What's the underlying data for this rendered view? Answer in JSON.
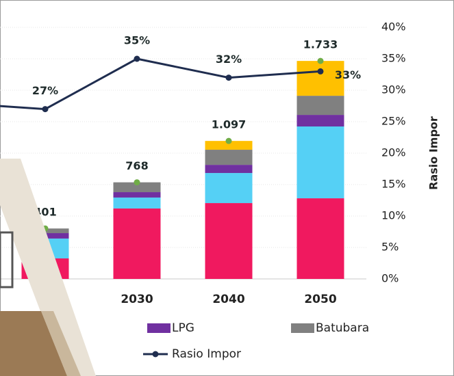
{
  "chart_data": {
    "type": "bar",
    "categories": [
      null,
      null,
      "2030",
      "2040",
      "2050"
    ],
    "ylim": [
      0,
      2000
    ],
    "y2lim": [
      0,
      40
    ],
    "y2label": "Rasio Impor",
    "y2ticks": [
      {
        "value": 0,
        "label": "0%"
      },
      {
        "value": 5,
        "label": "5%"
      },
      {
        "value": 10,
        "label": "10%"
      },
      {
        "value": 15,
        "label": "15%"
      },
      {
        "value": 20,
        "label": "20%"
      },
      {
        "value": 25,
        "label": "25%"
      },
      {
        "value": 30,
        "label": "30%"
      },
      {
        "value": 35,
        "label": "35%"
      },
      {
        "value": 40,
        "label": "40%"
      }
    ],
    "series": [
      {
        "color": "#f0195f",
        "values": [
          null,
          163,
          560,
          603,
          641
        ]
      },
      {
        "color": "#55d0f5",
        "values": [
          null,
          158,
          87,
          239,
          571
        ]
      },
      {
        "name": "LPG",
        "color": "#7030a0",
        "values": [
          null,
          43,
          43,
          65,
          92
        ]
      },
      {
        "name": "Batubara",
        "color": "#808080",
        "values": [
          null,
          37,
          78,
          120,
          152
        ]
      },
      {
        "color": "#ffc000",
        "values": [
          null,
          null,
          null,
          70,
          277
        ]
      },
      {
        "name": "Rasio Impor",
        "type": "line",
        "axis": "y2",
        "color": "#1f2d4f",
        "values": [
          28,
          27,
          35,
          32,
          33
        ],
        "value_labels": [
          null,
          "27%",
          "35%",
          "32%",
          "33%"
        ]
      }
    ],
    "totals": {
      "color": "#70ad47",
      "values": [
        null,
        401,
        768,
        1097,
        1733
      ],
      "value_labels": [
        null,
        "401",
        "768",
        "1.097",
        "1.733"
      ]
    }
  }
}
